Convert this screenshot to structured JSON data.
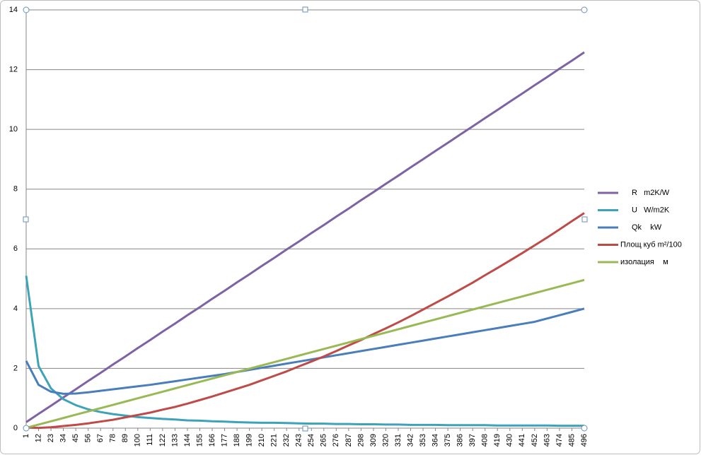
{
  "chart_data": {
    "type": "line",
    "x": [
      1,
      12,
      23,
      34,
      45,
      56,
      67,
      78,
      89,
      100,
      111,
      122,
      133,
      144,
      155,
      166,
      177,
      188,
      199,
      210,
      221,
      232,
      243,
      254,
      265,
      276,
      287,
      298,
      309,
      320,
      331,
      342,
      353,
      364,
      375,
      386,
      397,
      408,
      419,
      430,
      441,
      452,
      463,
      474,
      485,
      496
    ],
    "xlim": [
      1,
      496
    ],
    "xticks": [
      1,
      12,
      23,
      34,
      45,
      56,
      67,
      78,
      89,
      100,
      111,
      122,
      133,
      144,
      155,
      166,
      177,
      188,
      199,
      210,
      221,
      232,
      243,
      254,
      265,
      276,
      287,
      298,
      309,
      320,
      331,
      342,
      353,
      364,
      375,
      386,
      397,
      408,
      419,
      430,
      441,
      452,
      463,
      474,
      485,
      496
    ],
    "ylim": [
      0,
      14
    ],
    "yticks": [
      0,
      2,
      4,
      6,
      8,
      10,
      12,
      14
    ],
    "grid": true,
    "legend": "right",
    "series": [
      {
        "name": "R   m2K/W",
        "color": "#7f62a3",
        "values": [
          0.2,
          0.48,
          0.75,
          1.03,
          1.3,
          1.58,
          1.85,
          2.13,
          2.4,
          2.68,
          2.95,
          3.23,
          3.5,
          3.78,
          4.05,
          4.33,
          4.6,
          4.88,
          5.15,
          5.43,
          5.7,
          5.98,
          6.25,
          6.53,
          6.8,
          7.08,
          7.35,
          7.63,
          7.9,
          8.18,
          8.45,
          8.73,
          9.0,
          9.28,
          9.55,
          9.83,
          10.1,
          10.38,
          10.65,
          10.93,
          11.2,
          11.48,
          11.75,
          12.03,
          12.3,
          12.58
        ]
      },
      {
        "name": "U   W/m2K",
        "color": "#3ea3b8",
        "values": [
          5.1,
          2.08,
          1.33,
          0.97,
          0.77,
          0.63,
          0.54,
          0.47,
          0.42,
          0.37,
          0.34,
          0.31,
          0.29,
          0.26,
          0.25,
          0.23,
          0.22,
          0.2,
          0.19,
          0.18,
          0.18,
          0.17,
          0.16,
          0.15,
          0.15,
          0.14,
          0.14,
          0.13,
          0.13,
          0.12,
          0.12,
          0.11,
          0.11,
          0.11,
          0.1,
          0.1,
          0.1,
          0.1,
          0.09,
          0.09,
          0.09,
          0.09,
          0.09,
          0.08,
          0.08,
          0.08
        ]
      },
      {
        "name": "Qk    kW",
        "color": "#4a7ebb",
        "values": [
          2.25,
          1.45,
          1.22,
          1.15,
          1.16,
          1.2,
          1.25,
          1.3,
          1.35,
          1.4,
          1.45,
          1.51,
          1.57,
          1.63,
          1.69,
          1.75,
          1.81,
          1.88,
          1.95,
          2.02,
          2.09,
          2.16,
          2.23,
          2.3,
          2.37,
          2.44,
          2.51,
          2.58,
          2.65,
          2.72,
          2.79,
          2.86,
          2.93,
          3.0,
          3.07,
          3.14,
          3.21,
          3.28,
          3.35,
          3.42,
          3.49,
          3.56,
          3.67,
          3.78,
          3.89,
          4.0
        ]
      },
      {
        "name": "Площ куб m²/100",
        "color": "#be4b48",
        "values": [
          0.02,
          0.01,
          0.03,
          0.07,
          0.11,
          0.16,
          0.22,
          0.28,
          0.36,
          0.44,
          0.52,
          0.62,
          0.71,
          0.82,
          0.94,
          1.06,
          1.19,
          1.32,
          1.45,
          1.6,
          1.75,
          1.9,
          2.07,
          2.23,
          2.4,
          2.58,
          2.77,
          2.95,
          3.15,
          3.34,
          3.54,
          3.75,
          3.97,
          4.19,
          4.41,
          4.64,
          4.87,
          5.12,
          5.36,
          5.61,
          5.86,
          6.12,
          6.38,
          6.65,
          6.93,
          7.2
        ]
      },
      {
        "name": "изолация    м",
        "color": "#98b954",
        "values": [
          0.01,
          0.12,
          0.23,
          0.34,
          0.45,
          0.56,
          0.67,
          0.78,
          0.89,
          1.0,
          1.11,
          1.22,
          1.33,
          1.44,
          1.55,
          1.66,
          1.77,
          1.88,
          1.99,
          2.1,
          2.21,
          2.32,
          2.43,
          2.54,
          2.65,
          2.76,
          2.87,
          2.98,
          3.09,
          3.2,
          3.31,
          3.42,
          3.53,
          3.64,
          3.75,
          3.86,
          3.97,
          4.08,
          4.19,
          4.3,
          4.41,
          4.52,
          4.63,
          4.74,
          4.85,
          4.96
        ]
      }
    ]
  }
}
